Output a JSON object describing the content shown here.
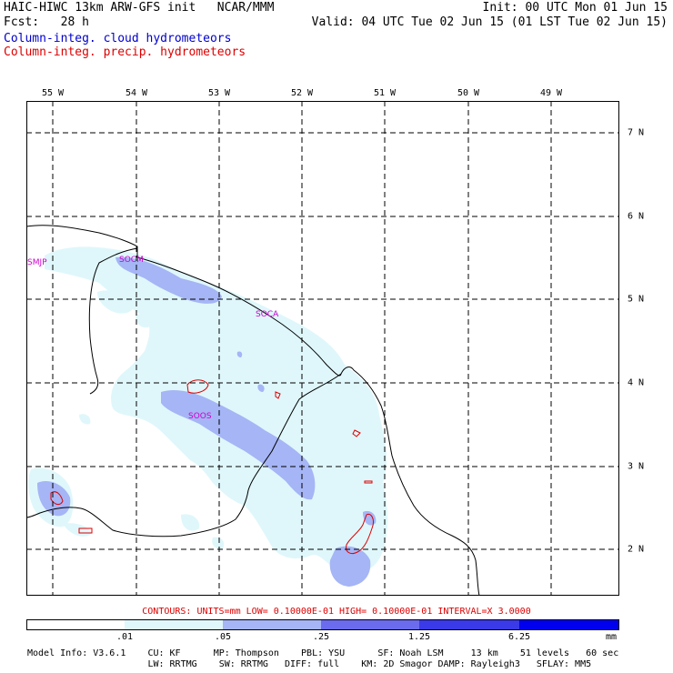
{
  "header": {
    "title": "HAIC-HIWC 13km ARW-GFS init   NCAR/MMM",
    "forecast": "Fcst:   28 h",
    "init": "Init: 00 UTC Mon 01 Jun 15",
    "valid": "Valid: 04 UTC Tue 02 Jun 15 (01 LST Tue 02 Jun 15)",
    "field_cloud": "Column-integ. cloud hydrometeors",
    "field_precip": "Column-integ. precip. hydrometeors"
  },
  "map": {
    "longitude_labels": [
      "55 W",
      "54 W",
      "53 W",
      "52 W",
      "51 W",
      "50 W",
      "49 W"
    ],
    "latitude_labels": [
      "7 N",
      "6 N",
      "5 N",
      "4 N",
      "3 N",
      "2 N"
    ],
    "stations": [
      "SMJP",
      "SOCM",
      "SOCA",
      "SOOS"
    ],
    "colors": {
      "frame": "#000000",
      "grid": "#000000",
      "coast": "#000000",
      "precip_contour": "#dd0000",
      "fill_1": "#dff7fb",
      "fill_2": "#a5b5f5",
      "fill_3": "#6b6bee",
      "fill_4": "#3a3ae8",
      "fill_5": "#0000ee"
    }
  },
  "legend": {
    "contours_text": "CONTOURS:  UNITS=mm  LOW= 0.10000E-01  HIGH= 0.10000E-01  INTERVAL=X  3.0000",
    "ticks": [
      ".01",
      ".05",
      ".25",
      "1.25",
      "6.25"
    ],
    "units": "mm"
  },
  "model_info": {
    "line1": "Model Info: V3.6.1    CU: KF      MP: Thompson    PBL: YSU      SF: Noah LSM     13 km    51 levels   60 sec",
    "line2": "                      LW: RRTMG    SW: RRTMG   DIFF: full    KM: 2D Smagor DAMP: Rayleigh3   SFLAY: MM5"
  }
}
